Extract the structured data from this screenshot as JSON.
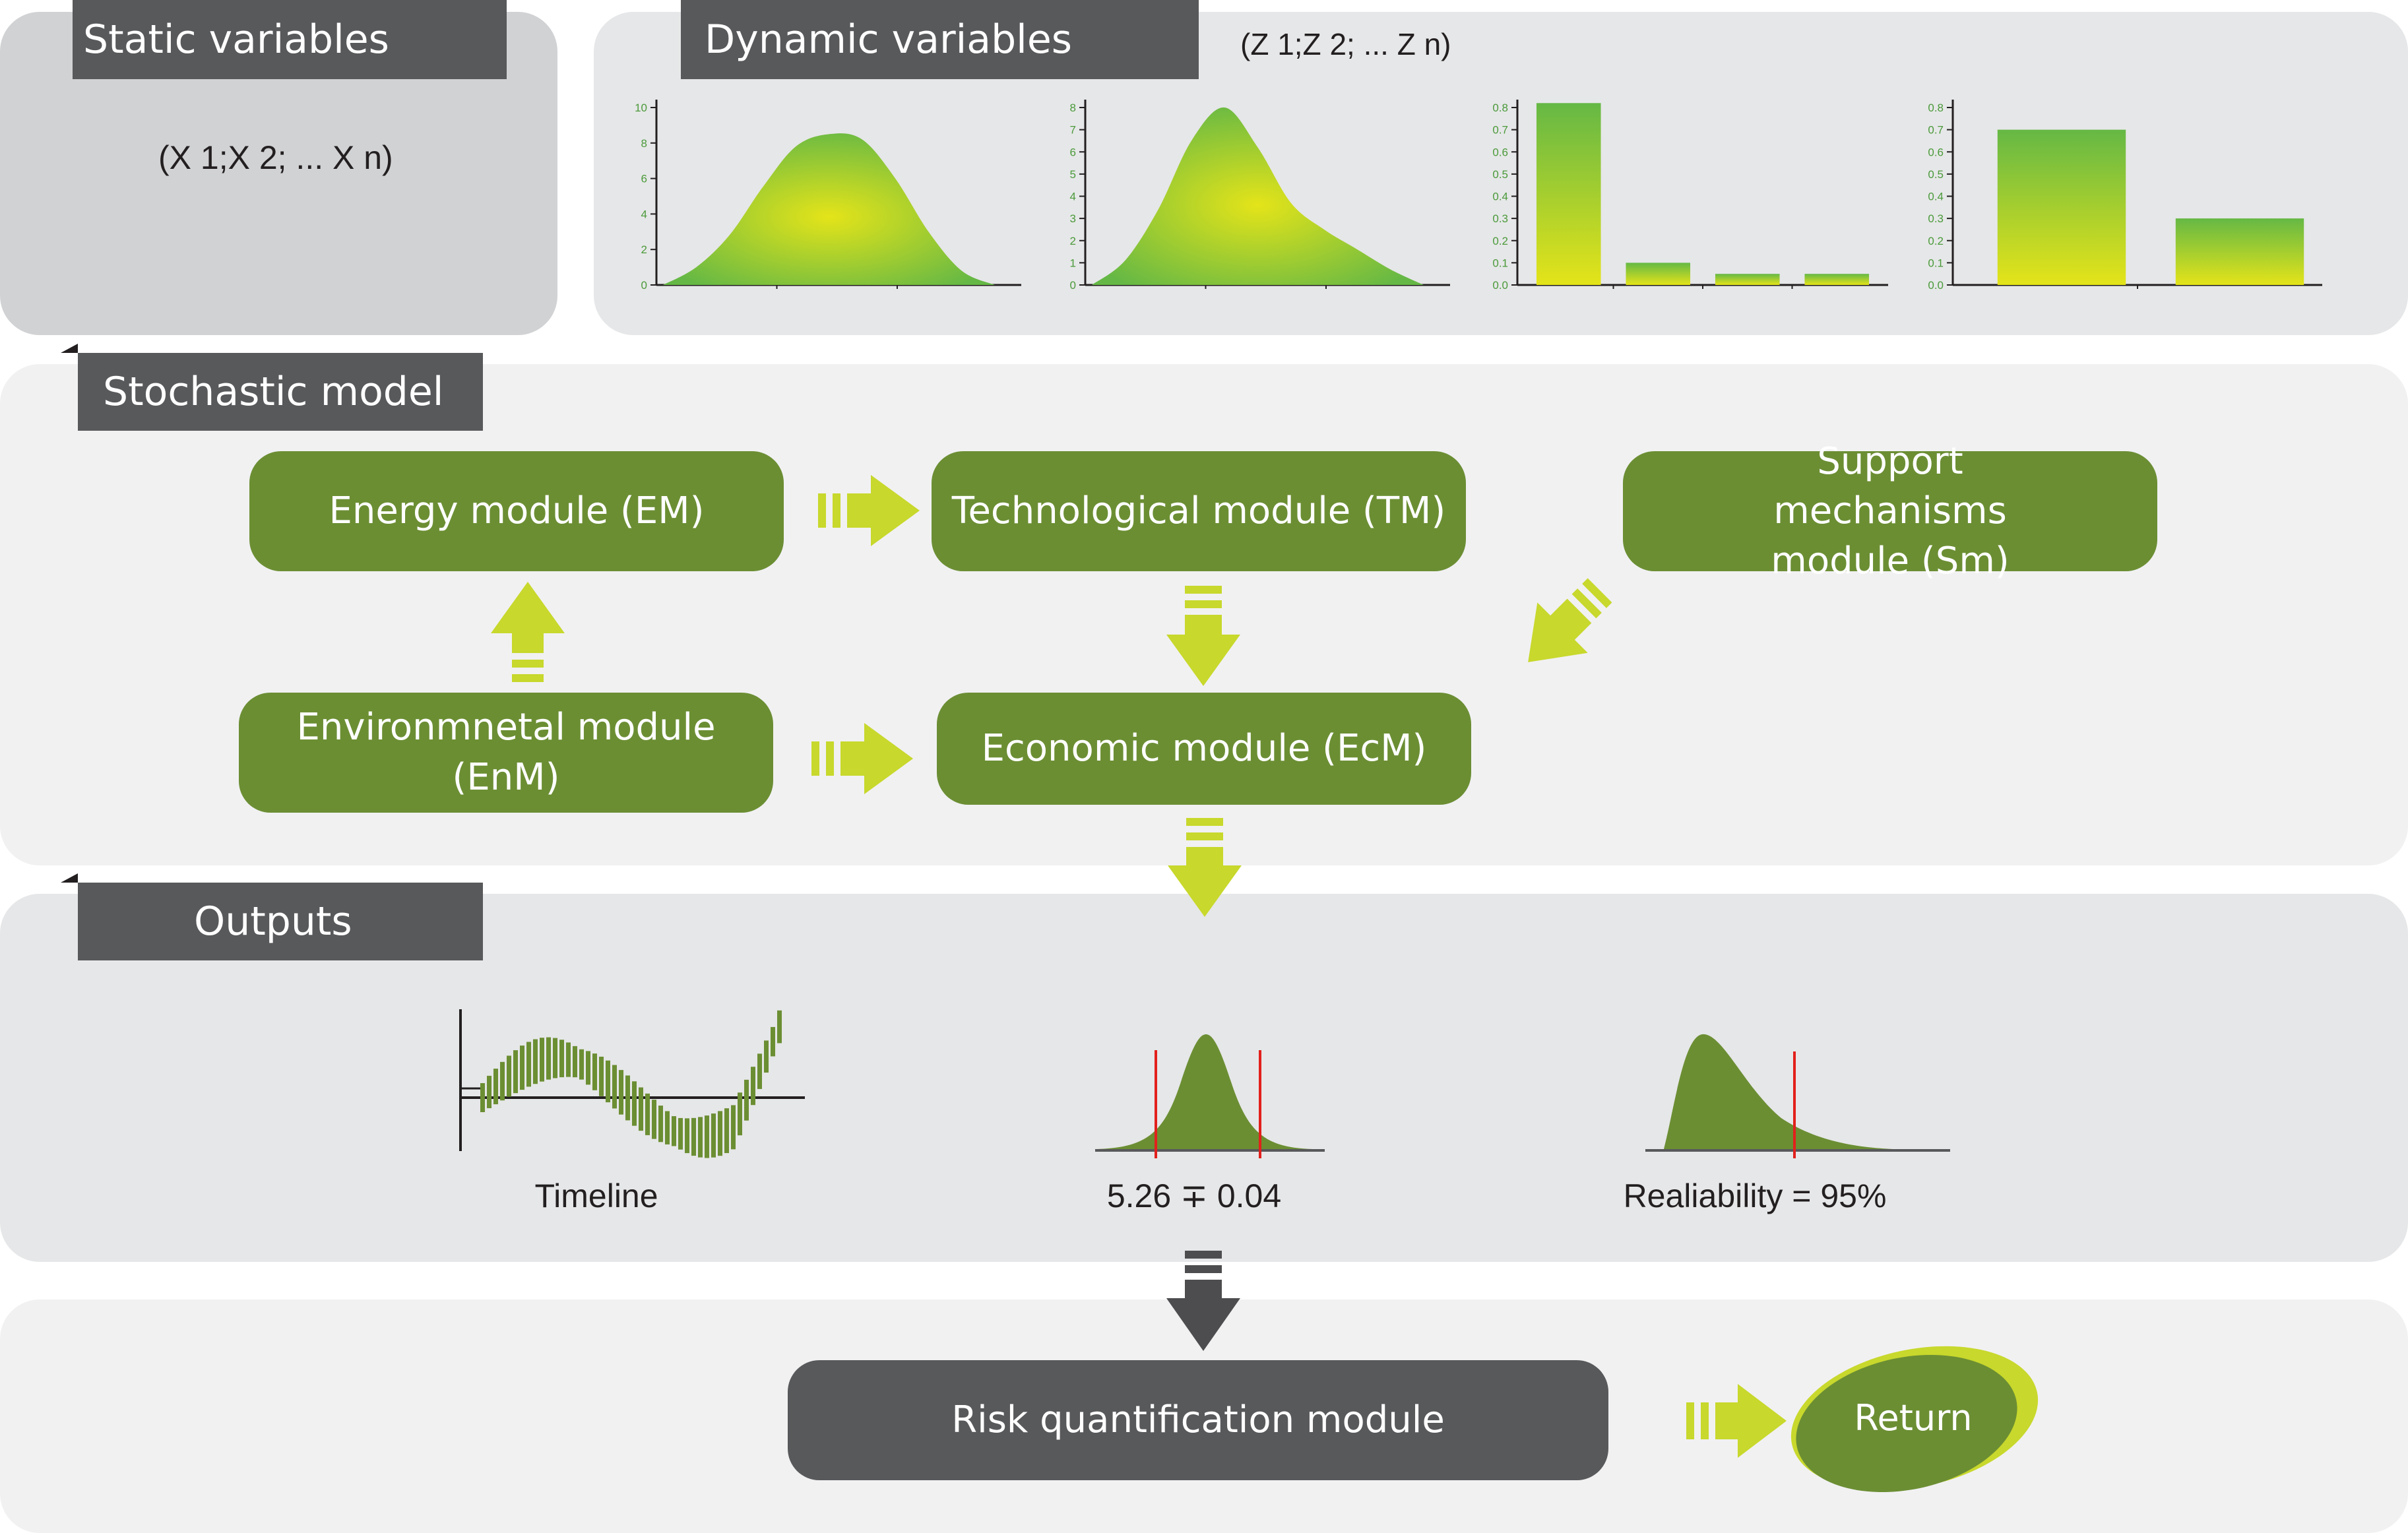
{
  "static_variables": {
    "title": "Static variables",
    "notation": "(X 1;X 2; ... X n)"
  },
  "dynamic_variables": {
    "title": "Dynamic variables",
    "notation": "(Z 1;Z 2; ... Z n)",
    "chart_data": [
      {
        "type": "area",
        "yticks": [
          "0",
          "2",
          "4",
          "6",
          "8",
          "10"
        ],
        "ylim": [
          0,
          10
        ],
        "x": [
          0,
          1,
          2,
          3,
          4,
          5,
          6,
          7,
          8,
          9,
          10
        ],
        "values": [
          0,
          1,
          2.8,
          5.5,
          7.8,
          8.5,
          8.2,
          6,
          3,
          0.8,
          0
        ]
      },
      {
        "type": "area",
        "yticks": [
          "0",
          "1",
          "2",
          "3",
          "4",
          "5",
          "6",
          "7",
          "8"
        ],
        "ylim": [
          0,
          8
        ],
        "x": [
          0,
          1,
          2,
          3,
          4,
          5,
          6,
          7,
          8,
          9,
          10
        ],
        "values": [
          0,
          1.1,
          3.4,
          6.5,
          8,
          6.2,
          3.7,
          2.5,
          1.6,
          0.7,
          0
        ]
      },
      {
        "type": "bar",
        "yticks": [
          "0.0",
          "0.1",
          "0.2",
          "0.3",
          "0.4",
          "0.5",
          "0.6",
          "0.7",
          "0.8"
        ],
        "ylim": [
          0,
          0.8
        ],
        "values": [
          0.82,
          0.1,
          0.05,
          0.05
        ]
      },
      {
        "type": "bar",
        "yticks": [
          "0.0",
          "0.1",
          "0.2",
          "0.3",
          "0.4",
          "0.5",
          "0.6",
          "0.7",
          "0.8"
        ],
        "ylim": [
          0,
          0.8
        ],
        "values": [
          0.7,
          0.3
        ]
      }
    ]
  },
  "stochastic_model": {
    "title": "Stochastic model",
    "modules": {
      "energy": "Energy module (EM)",
      "technological": "Technological module (TM)",
      "support": "Support mechanisms module  (Sm)",
      "environmental": "Environmnetal module (EnM)",
      "economic": "Economic module (EcM)"
    }
  },
  "outputs": {
    "title": "Outputs",
    "timeline_label": "Timeline",
    "mean_label": "5.26 ∓ 0.04",
    "reliability_label": "Realiability = 95%"
  },
  "risk": {
    "module": "Risk quantification module",
    "return_label": "Return"
  },
  "colors": {
    "panel_gray": "#d1d2d4",
    "panel_light": "#e6e7e8",
    "module_green": "#6b8e33",
    "arrow_lime": "#c8d82c",
    "tab_dark": "#58595b",
    "threshold_red": "#e2201c"
  }
}
